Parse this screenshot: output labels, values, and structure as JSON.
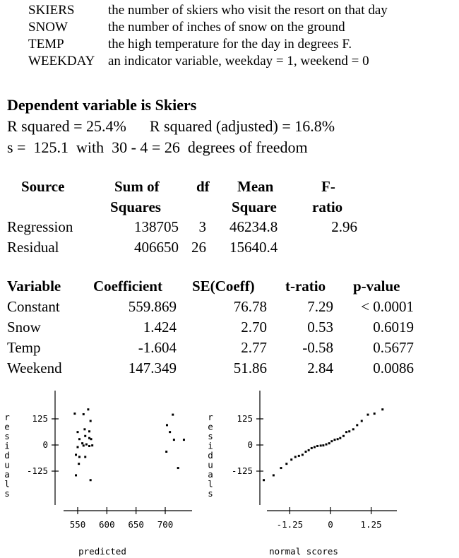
{
  "variables": [
    {
      "name": "SKIERS",
      "desc": "the number of skiers who visit the resort on that day"
    },
    {
      "name": "SNOW",
      "desc": "the number of inches of snow on the ground"
    },
    {
      "name": "TEMP",
      "desc": "the high temperature for the day in degrees F."
    },
    {
      "name": "WEEKDAY",
      "desc": "an indicator variable, weekday = 1, weekend = 0"
    }
  ],
  "regression": {
    "dependent": "Dependent variable is Skiers",
    "rsq": "R squared = 25.4%",
    "rsq_adj": "R squared (adjusted) = 16.8%",
    "s_line": "s =  125.1  with  30 - 4 = 26  degrees of freedom"
  },
  "anova": {
    "headers": {
      "source": "Source",
      "ss1": "Sum of",
      "ss2": "Squares",
      "df": "df",
      "ms1": "Mean",
      "ms2": "Square",
      "f1": "F-",
      "f2": "ratio"
    },
    "rows": [
      {
        "source": "Regression",
        "ss": "138705",
        "df": "3",
        "ms": "46234.8",
        "f": "2.96"
      },
      {
        "source": "Residual",
        "ss": "406650",
        "df": "26",
        "ms": "15640.4",
        "f": ""
      }
    ]
  },
  "coefficients": {
    "headers": {
      "variable": "Variable",
      "coef": "Coefficient",
      "se": "SE(Coeff)",
      "t": "t-ratio",
      "p": "p-value"
    },
    "rows": [
      {
        "variable": "Constant",
        "coef": "559.869",
        "se": "76.78",
        "t": "7.29",
        "p": "< 0.0001"
      },
      {
        "variable": "Snow",
        "coef": "1.424",
        "se": "2.70",
        "t": "0.53",
        "p": "0.6019"
      },
      {
        "variable": "Temp",
        "coef": "-1.604",
        "se": "2.77",
        "t": "-0.58",
        "p": "0.5677"
      },
      {
        "variable": "Weekend",
        "coef": "147.349",
        "se": "51.86",
        "t": "2.84",
        "p": "0.0086"
      }
    ]
  },
  "chart_data": [
    {
      "type": "scatter",
      "title": "",
      "xlabel": "predicted",
      "ylabel": "residuals",
      "xticks": [
        "550",
        "600",
        "650",
        "700"
      ],
      "yticks": [
        "125",
        "0",
        "-125"
      ],
      "xlim": [
        520,
        755
      ],
      "ylim": [
        -250,
        210
      ],
      "points": [
        {
          "x": 545,
          "y": 150
        },
        {
          "x": 560,
          "y": 147
        },
        {
          "x": 568,
          "y": 170
        },
        {
          "x": 572,
          "y": 115
        },
        {
          "x": 562,
          "y": 75
        },
        {
          "x": 570,
          "y": 65
        },
        {
          "x": 550,
          "y": 62
        },
        {
          "x": 553,
          "y": 28
        },
        {
          "x": 563,
          "y": 43
        },
        {
          "x": 570,
          "y": 33
        },
        {
          "x": 573,
          "y": 28
        },
        {
          "x": 558,
          "y": 8
        },
        {
          "x": 565,
          "y": 3
        },
        {
          "x": 550,
          "y": -10
        },
        {
          "x": 560,
          "y": -3
        },
        {
          "x": 570,
          "y": -5
        },
        {
          "x": 575,
          "y": -2
        },
        {
          "x": 547,
          "y": -47
        },
        {
          "x": 553,
          "y": -57
        },
        {
          "x": 563,
          "y": -57
        },
        {
          "x": 552,
          "y": -90
        },
        {
          "x": 547,
          "y": -145
        },
        {
          "x": 572,
          "y": -168
        },
        {
          "x": 713,
          "y": 145
        },
        {
          "x": 703,
          "y": 95
        },
        {
          "x": 708,
          "y": 62
        },
        {
          "x": 715,
          "y": 25
        },
        {
          "x": 732,
          "y": 25
        },
        {
          "x": 702,
          "y": -32
        },
        {
          "x": 722,
          "y": -110
        }
      ]
    },
    {
      "type": "scatter",
      "title": "",
      "xlabel": "normal scores",
      "ylabel": "residuals",
      "xticks": [
        "-1.25",
        "0",
        "1.25"
      ],
      "yticks": [
        "125",
        "0",
        "-125"
      ],
      "xlim": [
        -2.2,
        2.2
      ],
      "ylim": [
        -250,
        210
      ],
      "points": [
        {
          "x": -2.05,
          "y": -168
        },
        {
          "x": -1.75,
          "y": -145
        },
        {
          "x": -1.52,
          "y": -110
        },
        {
          "x": -1.35,
          "y": -90
        },
        {
          "x": -1.2,
          "y": -70
        },
        {
          "x": -1.08,
          "y": -57
        },
        {
          "x": -0.97,
          "y": -52
        },
        {
          "x": -0.86,
          "y": -47
        },
        {
          "x": -0.76,
          "y": -32
        },
        {
          "x": -0.67,
          "y": -25
        },
        {
          "x": -0.58,
          "y": -15
        },
        {
          "x": -0.49,
          "y": -10
        },
        {
          "x": -0.4,
          "y": -5
        },
        {
          "x": -0.3,
          "y": -3
        },
        {
          "x": -0.22,
          "y": -2
        },
        {
          "x": -0.13,
          "y": 3
        },
        {
          "x": -0.04,
          "y": 8
        },
        {
          "x": 0.04,
          "y": 18
        },
        {
          "x": 0.13,
          "y": 25
        },
        {
          "x": 0.22,
          "y": 28
        },
        {
          "x": 0.3,
          "y": 33
        },
        {
          "x": 0.4,
          "y": 43
        },
        {
          "x": 0.49,
          "y": 62
        },
        {
          "x": 0.58,
          "y": 65
        },
        {
          "x": 0.7,
          "y": 75
        },
        {
          "x": 0.82,
          "y": 95
        },
        {
          "x": 0.96,
          "y": 115
        },
        {
          "x": 1.15,
          "y": 145
        },
        {
          "x": 1.35,
          "y": 150
        },
        {
          "x": 1.6,
          "y": 170
        }
      ]
    }
  ]
}
